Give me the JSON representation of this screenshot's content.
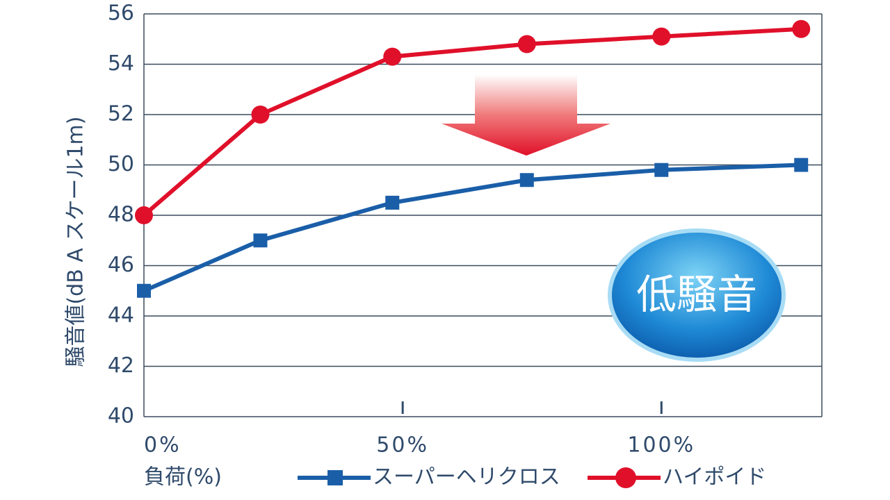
{
  "chart_data": {
    "type": "line",
    "y_label": "騒音値(dB A スケール1m)",
    "x_label": "負荷(%)",
    "badge": "低騒音",
    "x": [
      0,
      22.5,
      48,
      74,
      100,
      127
    ],
    "xlim": [
      0,
      131
    ],
    "xticks": [
      {
        "value": 0,
        "label": "0%"
      },
      {
        "value": 50,
        "label": "50%"
      },
      {
        "value": 100,
        "label": "100%"
      }
    ],
    "ylim": [
      40,
      56
    ],
    "yticks": [
      40,
      42,
      44,
      46,
      48,
      50,
      52,
      54,
      56
    ],
    "grid": true,
    "series": [
      {
        "name": "スーパーヘリクロス",
        "color": "#1a5ea8",
        "marker": "square",
        "values": [
          45,
          47,
          48.5,
          49.4,
          49.8,
          50
        ]
      },
      {
        "name": "ハイポイド",
        "color": "#e0102a",
        "marker": "circle",
        "values": [
          48,
          52,
          54.3,
          54.8,
          55.1,
          55.4
        ]
      }
    ]
  }
}
